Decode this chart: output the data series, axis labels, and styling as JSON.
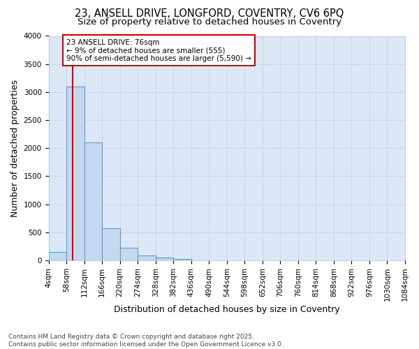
{
  "title1": "23, ANSELL DRIVE, LONGFORD, COVENTRY, CV6 6PQ",
  "title2": "Size of property relative to detached houses in Coventry",
  "xlabel": "Distribution of detached houses by size in Coventry",
  "ylabel": "Number of detached properties",
  "bin_edges": [
    4,
    58,
    112,
    166,
    220,
    274,
    328,
    382,
    436,
    490,
    544,
    598,
    652,
    706,
    760,
    814,
    868,
    922,
    976,
    1030,
    1084
  ],
  "bar_heights": [
    150,
    3100,
    2100,
    570,
    220,
    85,
    50,
    20,
    5,
    0,
    0,
    0,
    0,
    0,
    0,
    0,
    0,
    0,
    0,
    0
  ],
  "bar_color": "#c5d8ee",
  "bar_edge_color": "#5b9bd5",
  "vline_x": 76,
  "vline_color": "#cc0000",
  "ylim": [
    0,
    4000
  ],
  "yticks": [
    0,
    500,
    1000,
    1500,
    2000,
    2500,
    3000,
    3500,
    4000
  ],
  "annotation_text": "23 ANSELL DRIVE: 76sqm\n← 9% of detached houses are smaller (555)\n90% of semi-detached houses are larger (5,590) →",
  "annotation_box_color": "#ffffff",
  "annotation_box_edge": "#cc0000",
  "grid_color": "#c8d8e8",
  "background_color": "#dce8f5",
  "footer_text": "Contains HM Land Registry data © Crown copyright and database right 2025.\nContains public sector information licensed under the Open Government Licence v3.0.",
  "title1_fontsize": 10.5,
  "title2_fontsize": 9.5,
  "axis_label_fontsize": 9,
  "tick_fontsize": 7.5,
  "annotation_fontsize": 7.5,
  "footer_fontsize": 6.5
}
